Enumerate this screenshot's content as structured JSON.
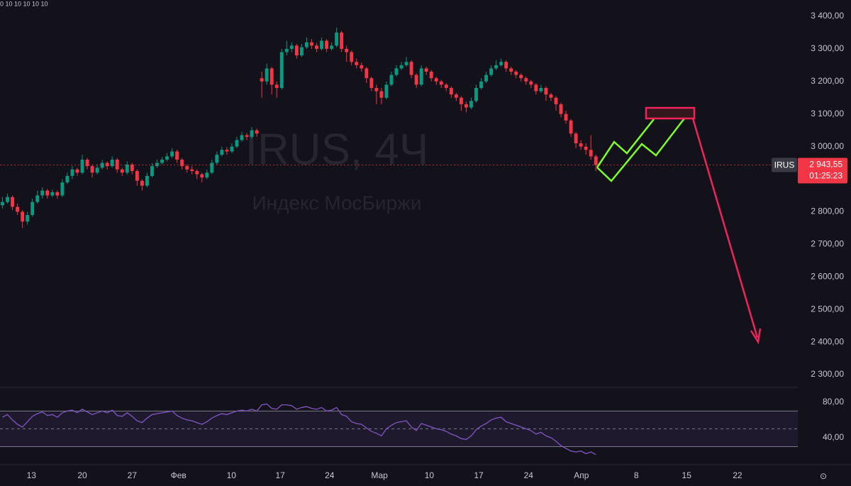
{
  "chart_data": {
    "type": "candlestick",
    "title": "IRUS, 4Ч",
    "subtitle": "Индекс МосБиржи",
    "indicator_text": "0 10 10 10 10 10",
    "last_price_label": "2 943,55",
    "countdown": "01:25:23",
    "xlim": [
      0,
      160
    ],
    "xticks": [
      {
        "value": 6.3,
        "label": "13"
      },
      {
        "value": 16.5,
        "label": "20"
      },
      {
        "value": 26.5,
        "label": "27"
      },
      {
        "value": 35.8,
        "label": "Фев"
      },
      {
        "value": 46.4,
        "label": "10"
      },
      {
        "value": 56.2,
        "label": "17"
      },
      {
        "value": 66.1,
        "label": "24"
      },
      {
        "value": 76.1,
        "label": "Мар"
      },
      {
        "value": 86.1,
        "label": "10"
      },
      {
        "value": 96,
        "label": "17"
      },
      {
        "value": 106,
        "label": "24"
      },
      {
        "value": 116.6,
        "label": "Апр"
      },
      {
        "value": 127.6,
        "label": "8"
      },
      {
        "value": 137.7,
        "label": "15"
      },
      {
        "value": 147.9,
        "label": "22"
      }
    ],
    "ylim": [
      2263,
      3450
    ],
    "yticks": [
      {
        "value": 3400,
        "label": "3 400,00"
      },
      {
        "value": 3300,
        "label": "3 300,00"
      },
      {
        "value": 3200,
        "label": "3 200,00"
      },
      {
        "value": 3100,
        "label": "3 100,00"
      },
      {
        "value": 3000,
        "label": "3 000,00"
      },
      {
        "value": 2900,
        "label": "2 900,00"
      },
      {
        "value": 2800,
        "label": "2 800,00"
      },
      {
        "value": 2700,
        "label": "2 700,00"
      },
      {
        "value": 2600,
        "label": "2 600,00"
      },
      {
        "value": 2500,
        "label": "2 500,00"
      },
      {
        "value": 2400,
        "label": "2 400,00"
      },
      {
        "value": 2300,
        "label": "2 300,00"
      }
    ],
    "grid": false,
    "series": [
      {
        "name": "IRUS",
        "up_color": "#089981",
        "down_color": "#f23645",
        "open": [
          2820,
          2830,
          2845,
          2815,
          2800,
          2770,
          2790,
          2830,
          2850,
          2865,
          2850,
          2860,
          2850,
          2890,
          2910,
          2930,
          2920,
          2960,
          2940,
          2920,
          2935,
          2950,
          2940,
          2960,
          2930,
          2920,
          2945,
          2925,
          2895,
          2880,
          2910,
          2940,
          2950,
          2960,
          2970,
          2985,
          2960,
          2940,
          2930,
          2925,
          2915,
          2905,
          2920,
          2950,
          2975,
          2990,
          2985,
          3000,
          3020,
          3035,
          3030,
          3050,
          3210,
          3200,
          3240,
          3190,
          3180,
          3290,
          3300,
          3310,
          3280,
          3305,
          3320,
          3310,
          3300,
          3325,
          3300,
          3310,
          3350,
          3300,
          3290,
          3260,
          3250,
          3240,
          3210,
          3180,
          3170,
          3150,
          3190,
          3220,
          3240,
          3250,
          3260,
          3220,
          3190,
          3240,
          3230,
          3210,
          3200,
          3190,
          3180,
          3160,
          3150,
          3130,
          3120,
          3140,
          3180,
          3200,
          3220,
          3240,
          3250,
          3260,
          3240,
          3230,
          3220,
          3210,
          3200,
          3190,
          3170,
          3180,
          3160,
          3150,
          3130,
          3100,
          3080,
          3040,
          3010,
          3000,
          2990,
          2970
        ],
        "high": [
          2845,
          2855,
          2850,
          2825,
          2805,
          2800,
          2840,
          2865,
          2875,
          2870,
          2868,
          2865,
          2900,
          2920,
          2940,
          2935,
          2975,
          2965,
          2945,
          2945,
          2960,
          2955,
          2970,
          2965,
          2935,
          2955,
          2950,
          2930,
          2900,
          2920,
          2950,
          2960,
          2968,
          2980,
          2995,
          2990,
          2965,
          2945,
          2940,
          2930,
          2920,
          2930,
          2960,
          2985,
          3000,
          2998,
          3010,
          3030,
          3045,
          3042,
          3060,
          3055,
          3230,
          3255,
          3245,
          3200,
          3300,
          3325,
          3320,
          3315,
          3315,
          3335,
          3330,
          3318,
          3335,
          3330,
          3320,
          3365,
          3355,
          3310,
          3295,
          3270,
          3258,
          3245,
          3215,
          3190,
          3180,
          3200,
          3230,
          3250,
          3260,
          3275,
          3265,
          3225,
          3250,
          3245,
          3235,
          3215,
          3205,
          3195,
          3185,
          3165,
          3155,
          3138,
          3150,
          3190,
          3210,
          3230,
          3250,
          3265,
          3270,
          3265,
          3245,
          3235,
          3225,
          3215,
          3205,
          3195,
          3190,
          3185,
          3165,
          3155,
          3135,
          3110,
          3085,
          3045,
          3020,
          3010,
          3035,
          2975
        ],
        "low": [
          2810,
          2825,
          2805,
          2790,
          2750,
          2760,
          2785,
          2825,
          2840,
          2840,
          2845,
          2840,
          2845,
          2885,
          2900,
          2910,
          2915,
          2930,
          2905,
          2915,
          2930,
          2930,
          2935,
          2920,
          2910,
          2915,
          2915,
          2880,
          2865,
          2875,
          2905,
          2935,
          2945,
          2955,
          2965,
          2950,
          2930,
          2920,
          2915,
          2900,
          2890,
          2900,
          2915,
          2945,
          2970,
          2975,
          2980,
          2995,
          3015,
          3020,
          3025,
          3030,
          3150,
          3190,
          3160,
          3150,
          3175,
          3280,
          3290,
          3270,
          3275,
          3300,
          3300,
          3290,
          3295,
          3290,
          3295,
          3305,
          3290,
          3260,
          3250,
          3240,
          3230,
          3195,
          3170,
          3130,
          3130,
          3145,
          3185,
          3215,
          3235,
          3245,
          3210,
          3180,
          3185,
          3220,
          3200,
          3190,
          3180,
          3170,
          3150,
          3140,
          3110,
          3105,
          3115,
          3135,
          3175,
          3195,
          3215,
          3235,
          3245,
          3230,
          3220,
          3210,
          3200,
          3190,
          3180,
          3160,
          3165,
          3140,
          3140,
          3110,
          3090,
          3070,
          3030,
          2995,
          2990,
          2975,
          2960,
          2925
        ],
        "close": [
          2830,
          2845,
          2815,
          2800,
          2770,
          2790,
          2830,
          2850,
          2865,
          2850,
          2860,
          2850,
          2890,
          2910,
          2930,
          2920,
          2960,
          2940,
          2920,
          2935,
          2950,
          2940,
          2960,
          2930,
          2920,
          2945,
          2925,
          2895,
          2880,
          2910,
          2940,
          2950,
          2960,
          2970,
          2985,
          2960,
          2940,
          2930,
          2925,
          2915,
          2905,
          2920,
          2950,
          2975,
          2990,
          2985,
          3000,
          3020,
          3035,
          3030,
          3050,
          3040,
          3200,
          3240,
          3190,
          3180,
          3290,
          3300,
          3310,
          3280,
          3305,
          3320,
          3310,
          3300,
          3325,
          3300,
          3310,
          3350,
          3300,
          3290,
          3260,
          3250,
          3240,
          3210,
          3180,
          3170,
          3150,
          3190,
          3220,
          3240,
          3250,
          3260,
          3220,
          3190,
          3240,
          3230,
          3210,
          3200,
          3190,
          3180,
          3160,
          3150,
          3130,
          3120,
          3140,
          3180,
          3200,
          3220,
          3240,
          3250,
          3260,
          3240,
          3230,
          3220,
          3210,
          3200,
          3190,
          3170,
          3180,
          3160,
          3150,
          3130,
          3100,
          3080,
          3040,
          3010,
          3000,
          2990,
          2970,
          2943.55
        ]
      }
    ],
    "rsi": {
      "color": "#7e57c2",
      "band_color": "#7e57c2",
      "ylim": [
        12,
        95
      ],
      "yticks": [
        {
          "value": 80,
          "label": "80,00"
        },
        {
          "value": 40,
          "label": "40,00"
        }
      ],
      "bands": [
        30,
        50,
        70
      ],
      "values": [
        63,
        66,
        60,
        55,
        52,
        58,
        64,
        67,
        69,
        65,
        66,
        63,
        68,
        70,
        71,
        68,
        72,
        69,
        66,
        68,
        70,
        68,
        71,
        65,
        64,
        68,
        64,
        59,
        57,
        62,
        66,
        67,
        68,
        69,
        70,
        65,
        62,
        60,
        59,
        57,
        55,
        58,
        62,
        65,
        67,
        66,
        68,
        70,
        71,
        70,
        72,
        70,
        77,
        78,
        73,
        72,
        77,
        77,
        76,
        72,
        74,
        75,
        73,
        72,
        74,
        70,
        71,
        74,
        66,
        64,
        58,
        56,
        55,
        51,
        47,
        45,
        42,
        50,
        54,
        57,
        58,
        59,
        52,
        48,
        56,
        54,
        52,
        50,
        49,
        47,
        44,
        42,
        39,
        38,
        42,
        49,
        53,
        56,
        60,
        62,
        63,
        58,
        56,
        54,
        52,
        50,
        48,
        44,
        46,
        42,
        40,
        36,
        31,
        28,
        25,
        24,
        25,
        22,
        24,
        21
      ]
    }
  }
}
